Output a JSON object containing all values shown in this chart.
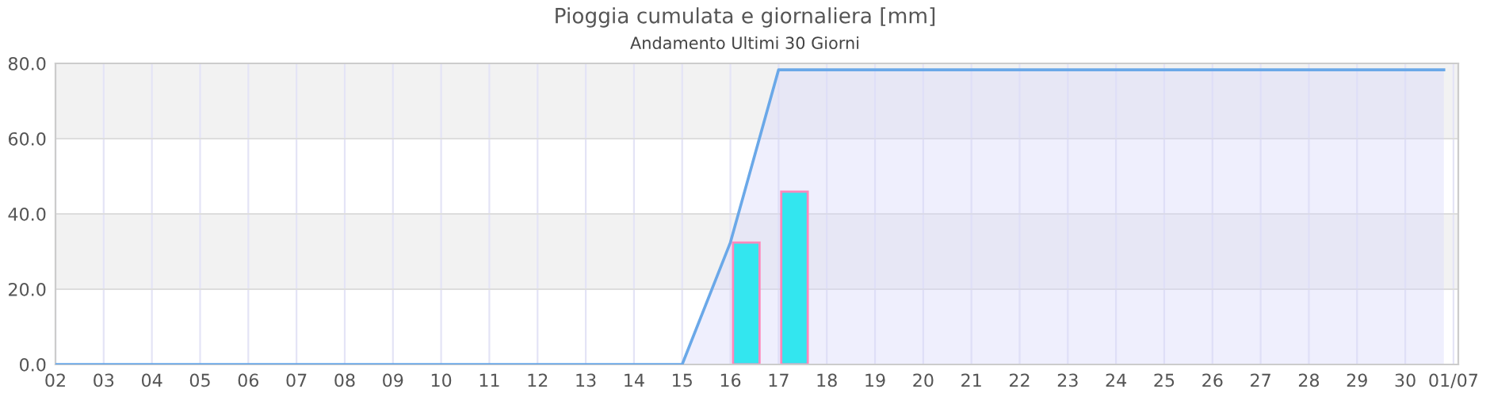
{
  "chart_data": {
    "type": "area",
    "title": "Pioggia cumulata e giornaliera [mm]",
    "subtitle": "Andamento Ultimi 30 Giorni",
    "series": [
      {
        "color": "#6aa8e8",
        "x": [
          2,
          15,
          16,
          17,
          30.8
        ],
        "values": [
          0,
          0,
          32.4,
          78.3,
          78.3
        ]
      },
      {
        "type": "bar",
        "color": "#33e6ef",
        "x": [
          16.33,
          17.33
        ],
        "values": [
          32.4,
          45.9
        ]
      }
    ],
    "xlim": [
      2,
      31.1
    ],
    "xticks": [
      {
        "value": 2,
        "label": "02"
      },
      {
        "value": 3,
        "label": "03"
      },
      {
        "value": 4,
        "label": "04"
      },
      {
        "value": 5,
        "label": "05"
      },
      {
        "value": 6,
        "label": "06"
      },
      {
        "value": 7,
        "label": "07"
      },
      {
        "value": 8,
        "label": "08"
      },
      {
        "value": 9,
        "label": "09"
      },
      10,
      11,
      12,
      13,
      14,
      15,
      16,
      17,
      18,
      19,
      20,
      21,
      22,
      23,
      24,
      25,
      26,
      27,
      28,
      29,
      30,
      {
        "value": 31,
        "label": "01/07"
      }
    ],
    "ylim": [
      0,
      80
    ],
    "yticks": [
      {
        "value": 0,
        "label": "0.0"
      },
      {
        "value": 20,
        "label": "20.0"
      },
      {
        "value": 40,
        "label": "40.0"
      },
      {
        "value": 60,
        "label": "60.0"
      },
      {
        "value": 80,
        "label": "80.0"
      }
    ],
    "bands": [
      {
        "axis": "y",
        "from": 20,
        "to": 40,
        "color": "#f2f2f2"
      },
      {
        "axis": "y",
        "from": 60,
        "to": 80,
        "color": "#f2f2f2"
      }
    ],
    "grid": true,
    "legend": false
  }
}
